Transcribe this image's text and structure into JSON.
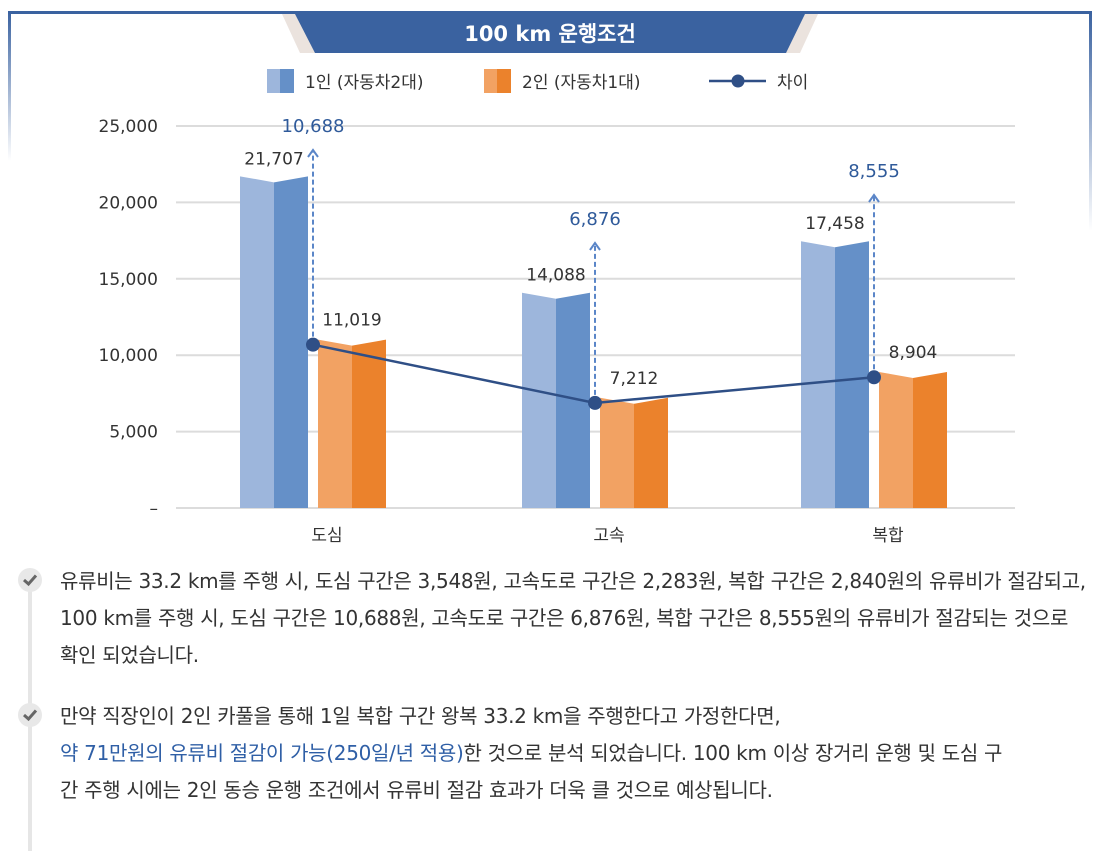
{
  "chart_data": {
    "type": "bar",
    "title": "100 km 운행조건",
    "categories": [
      "도심",
      "고속",
      "복합"
    ],
    "series": [
      {
        "name": "1인 (자동차2대)",
        "type": "bar",
        "values": [
          21707,
          14088,
          17458
        ],
        "colors": [
          "#9db6dc",
          "#6590c8"
        ]
      },
      {
        "name": "2인 (자동차1대)",
        "type": "bar",
        "values": [
          11019,
          7212,
          8904
        ],
        "colors": [
          "#f2a263",
          "#eb822c"
        ]
      },
      {
        "name": "차이",
        "type": "line",
        "values": [
          10688,
          6876,
          8555
        ],
        "color": "#2f4f86"
      }
    ],
    "value_labels": {
      "series1": [
        "21,707",
        "14,088",
        "17,458"
      ],
      "series2": [
        "11,019",
        "7,212",
        "8,904"
      ],
      "difference": [
        "10,688",
        "6,876",
        "8,555"
      ]
    },
    "yticks": [
      "–",
      "5,000",
      "10,000",
      "15,000",
      "20,000",
      "25,000"
    ],
    "ylim": [
      0,
      25000
    ],
    "grid": true,
    "legend": "top",
    "xlabel": "",
    "ylabel": ""
  },
  "notes": [
    {
      "text": "유류비는 33.2 km를 주행 시, 도심 구간은 3,548원, 고속도로 구간은 2,283원, 복합 구간은 2,840원의 유류비가 절감되고, 100 km를 주행 시, 도심 구간은 10,688원, 고속도로 구간은 6,876원, 복합 구간은 8,555원의 유류비가 절감되는 것으로 확인 되었습니다."
    },
    {
      "text_before": "만약 직장인이 2인 카풀을 통해 1일 복합 구간 왕복 33.2 km을 주행한다고 가정한다면,",
      "highlight": "약 71만원의 유류비 절감이 가능(250일/년 적용)",
      "text_after": "한 것으로 분석 되었습니다. 100 km 이상 장거리 운행 및 도심 구간 주행 시에는 2인 동승 운행 조건에서 유류비 절감 효과가 더욱 클 것으로 예상됩니다.",
      "highlight_color": "#2f5fa6"
    }
  ],
  "icons": {
    "bullet": "check-icon"
  }
}
